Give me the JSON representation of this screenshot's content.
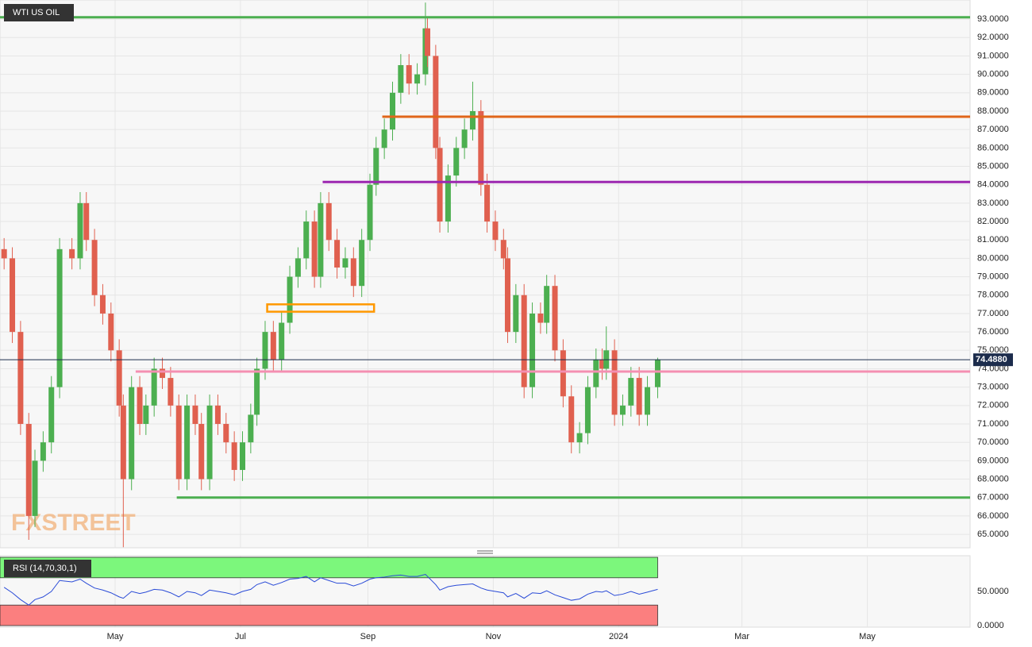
{
  "chart_data": [
    {
      "type": "candlestick",
      "title": "WTI US OIL",
      "watermark": "FXSTREET",
      "up_color": "#4caf50",
      "down_color": "#e0604f",
      "grid": true,
      "x": [
        -24,
        -20,
        -16,
        -12,
        -9,
        -5,
        -1,
        3,
        9,
        13,
        16,
        20,
        24,
        28,
        32,
        34,
        38,
        42,
        45,
        49,
        53,
        57,
        61,
        65,
        69,
        72,
        76,
        80,
        84,
        88,
        92,
        96,
        99,
        103,
        107,
        111,
        115,
        119,
        123,
        127,
        130,
        134,
        138,
        142,
        146,
        150,
        154,
        157,
        161,
        165,
        169,
        173,
        177,
        181,
        182,
        186,
        188,
        192,
        196,
        200,
        204,
        208,
        211,
        215,
        219,
        221,
        225,
        229,
        233,
        237,
        240,
        244,
        248,
        252,
        256,
        260,
        264,
        267,
        269,
        273,
        277,
        281,
        285,
        289,
        294
      ],
      "open": [
        80.5,
        80,
        76,
        71,
        66,
        69,
        70,
        73,
        80.5,
        80,
        83,
        81,
        78,
        77,
        75,
        72,
        68,
        73,
        71,
        72,
        74,
        73.5,
        72,
        68,
        72,
        71,
        68,
        72,
        71,
        70,
        68.5,
        70,
        71.5,
        74,
        76,
        74.5,
        76.5,
        79,
        80,
        82,
        79,
        83,
        81,
        79.5,
        80,
        78.5,
        81,
        84,
        86,
        87,
        89,
        90.5,
        89.5,
        90,
        92.5,
        91,
        86,
        82,
        84.5,
        86,
        87,
        88,
        84,
        82,
        81,
        80,
        76,
        78,
        73,
        77,
        76.5,
        78.5,
        75,
        72.5,
        70,
        70.5,
        73,
        74.5,
        74,
        75,
        71.5,
        72,
        73.5,
        71.5,
        73
      ],
      "high": [
        81.1,
        80.6,
        76.6,
        71.6,
        69.6,
        70.6,
        73.6,
        81.1,
        81.1,
        83.6,
        83.6,
        81.6,
        78.6,
        77.6,
        75.6,
        72.6,
        73.6,
        73.6,
        72.6,
        74.6,
        74.6,
        74.1,
        72.6,
        72.6,
        72.6,
        71.6,
        72.6,
        72.6,
        71.6,
        70.6,
        70.6,
        72.1,
        74.6,
        76.6,
        76.6,
        77.1,
        79.6,
        80.6,
        82.6,
        82.6,
        83.6,
        83.6,
        81.6,
        80.6,
        80.6,
        81.6,
        84.6,
        86.6,
        87.6,
        89.6,
        91.1,
        91.1,
        90.6,
        93.9,
        93.1,
        91.6,
        86.6,
        85.1,
        86.6,
        87.6,
        89.6,
        88.6,
        84.6,
        82.6,
        81.6,
        80.6,
        78.6,
        78.6,
        77.6,
        77.6,
        79.1,
        79.1,
        75.6,
        73.1,
        71.1,
        73.6,
        75.1,
        75.1,
        76.3,
        75.6,
        72.6,
        74.1,
        74.1,
        73.6,
        74.6
      ],
      "low": [
        79.4,
        75.4,
        70.4,
        64.7,
        65.4,
        68.4,
        69.4,
        72.4,
        79.4,
        79.4,
        80.4,
        77.4,
        76.4,
        74.4,
        71.4,
        64.3,
        67.4,
        70.4,
        70.4,
        71.4,
        72.9,
        71.4,
        67.4,
        67.4,
        70.4,
        67.4,
        67.4,
        70.4,
        69.4,
        67.9,
        67.9,
        69.4,
        70.9,
        73.4,
        73.9,
        73.9,
        75.9,
        78.4,
        79.4,
        78.4,
        78.4,
        80.4,
        78.9,
        78.9,
        77.9,
        77.9,
        80.4,
        83.4,
        85.4,
        86.4,
        88.4,
        88.9,
        88.9,
        89.4,
        90.4,
        85.4,
        81.4,
        81.4,
        83.9,
        85.4,
        86.4,
        83.4,
        81.4,
        80.4,
        79.4,
        75.4,
        75.4,
        72.4,
        72.4,
        75.9,
        75.9,
        74.4,
        71.9,
        69.4,
        69.4,
        69.9,
        72.4,
        73.4,
        73.4,
        70.9,
        70.9,
        71.4,
        70.9,
        70.9,
        72.4
      ],
      "close": [
        80,
        76,
        71,
        66,
        69,
        70,
        73,
        80.5,
        80,
        83,
        81,
        78,
        77,
        75,
        72,
        68,
        73,
        71,
        72,
        74,
        73.5,
        72,
        68,
        72,
        71,
        68,
        72,
        71,
        70,
        68.5,
        70,
        71.5,
        74,
        76,
        74.5,
        76.5,
        79,
        80,
        82,
        79,
        83,
        81,
        79.5,
        80,
        78.5,
        81,
        84,
        86,
        87,
        89,
        90.5,
        89.5,
        90,
        92.5,
        91,
        86,
        82,
        84.5,
        86,
        87,
        88,
        84,
        82,
        81,
        80,
        76,
        78,
        73,
        77,
        76.5,
        78.5,
        75,
        72.5,
        70,
        70.5,
        73,
        74.5,
        74,
        75,
        71.5,
        72,
        73.5,
        71.5,
        73,
        74.488
      ],
      "xlim": [
        -26,
        446
      ],
      "xticks": [
        {
          "value": 30,
          "label": "May"
        },
        {
          "value": 91,
          "label": "Jul"
        },
        {
          "value": 153,
          "label": "Sep"
        },
        {
          "value": 214,
          "label": "Nov"
        },
        {
          "value": 275,
          "label": "2024"
        },
        {
          "value": 335,
          "label": "Mar"
        },
        {
          "value": 396,
          "label": "May"
        }
      ],
      "ylim": [
        64.27,
        94.04
      ],
      "yticks": [
        {
          "value": 65,
          "label": "65.0000"
        },
        {
          "value": 66,
          "label": "66.0000"
        },
        {
          "value": 67,
          "label": "67.0000"
        },
        {
          "value": 68,
          "label": "68.0000"
        },
        {
          "value": 69,
          "label": "69.0000"
        },
        {
          "value": 70,
          "label": "70.0000"
        },
        {
          "value": 71,
          "label": "71.0000"
        },
        {
          "value": 72,
          "label": "72.0000"
        },
        {
          "value": 73,
          "label": "73.0000"
        },
        {
          "value": 74,
          "label": "74.0000"
        },
        {
          "value": 75,
          "label": "75.0000"
        },
        {
          "value": 76,
          "label": "76.0000"
        },
        {
          "value": 77,
          "label": "77.0000"
        },
        {
          "value": 78,
          "label": "78.0000"
        },
        {
          "value": 79,
          "label": "79.0000"
        },
        {
          "value": 80,
          "label": "80.0000"
        },
        {
          "value": 81,
          "label": "81.0000"
        },
        {
          "value": 82,
          "label": "82.0000"
        },
        {
          "value": 83,
          "label": "83.0000"
        },
        {
          "value": 84,
          "label": "84.0000"
        },
        {
          "value": 85,
          "label": "85.0000"
        },
        {
          "value": 86,
          "label": "86.0000"
        },
        {
          "value": 87,
          "label": "87.0000"
        },
        {
          "value": 88,
          "label": "88.0000"
        },
        {
          "value": 89,
          "label": "89.0000"
        },
        {
          "value": 90,
          "label": "90.0000"
        },
        {
          "value": 91,
          "label": "91.0000"
        },
        {
          "value": 92,
          "label": "92.0000"
        },
        {
          "value": 93,
          "label": "93.0000"
        }
      ],
      "levels": [
        {
          "value": 93.1,
          "start": -26,
          "color": "#4caf50"
        },
        {
          "value": 87.7,
          "start": 160,
          "color": "#e0661a"
        },
        {
          "value": 84.15,
          "start": 131,
          "color": "#9c27b0"
        },
        {
          "value": 73.85,
          "start": 40,
          "color": "#f48fb1"
        },
        {
          "value": 67.0,
          "start": 60,
          "color": "#4caf50"
        }
      ],
      "zone": {
        "x": [
          104,
          156
        ],
        "y": [
          77.1,
          77.5
        ],
        "color": "#ff9800"
      },
      "last_price": {
        "value": 74.488,
        "label": "74.4880"
      }
    },
    {
      "type": "line",
      "title": "RSI (14,70,30,1)",
      "color": "#2a4bd7",
      "values": [
        56,
        48,
        38,
        30,
        38,
        42,
        50,
        66,
        64,
        68,
        62,
        55,
        52,
        48,
        42,
        40,
        50,
        47,
        49,
        53,
        52,
        48,
        42,
        50,
        48,
        44,
        52,
        50,
        48,
        45,
        50,
        53,
        60,
        64,
        59,
        63,
        68,
        69,
        72,
        64,
        70,
        66,
        62,
        62,
        58,
        62,
        68,
        70,
        71,
        73,
        74,
        72,
        72,
        75,
        72,
        60,
        52,
        57,
        59,
        60,
        61,
        55,
        52,
        50,
        48,
        42,
        47,
        40,
        48,
        47,
        51,
        45,
        41,
        37,
        39,
        46,
        50,
        49,
        51,
        44,
        46,
        50,
        46,
        49,
        53
      ],
      "ylim": [
        0,
        100
      ],
      "yticks": [
        {
          "value": 50,
          "label": "50.0000"
        },
        {
          "value": 0,
          "label": "0.0000"
        }
      ],
      "bands": [
        {
          "from": 70,
          "to": 100,
          "color": "#7cf77c"
        },
        {
          "from": 0,
          "to": 30,
          "color": "#fb7f7f"
        }
      ]
    }
  ]
}
